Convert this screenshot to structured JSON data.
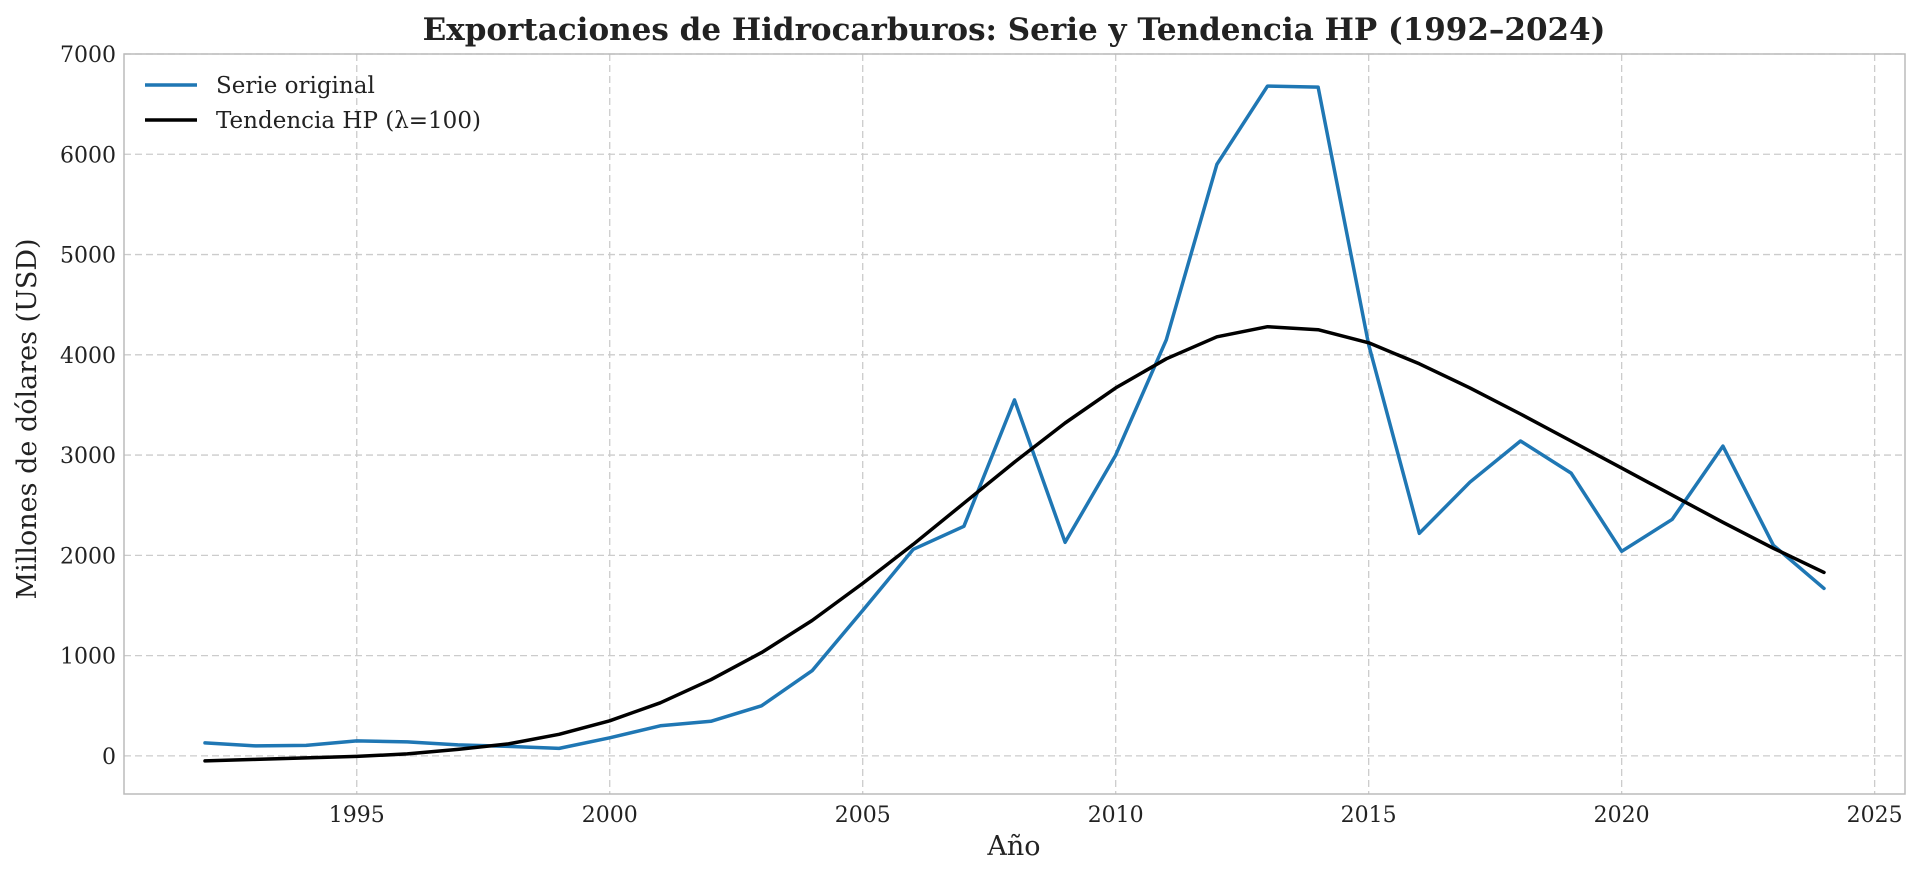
{
  "chart_data": {
    "type": "line",
    "title": "Exportaciones de Hidrocarburos: Serie y Tendencia HP (1992–2024)",
    "xlabel": "Año",
    "ylabel": "Millones de dólares (USD)",
    "xlim": [
      1990.4,
      2025.6
    ],
    "ylim": [
      -380,
      7000
    ],
    "xticks": [
      1995,
      2000,
      2005,
      2010,
      2015,
      2020,
      2025
    ],
    "yticks": [
      0,
      1000,
      2000,
      3000,
      4000,
      5000,
      6000,
      7000
    ],
    "grid": true,
    "legend_position": "top-left",
    "x": [
      1992,
      1993,
      1994,
      1995,
      1996,
      1997,
      1998,
      1999,
      2000,
      2001,
      2002,
      2003,
      2004,
      2005,
      2006,
      2007,
      2008,
      2009,
      2010,
      2011,
      2012,
      2013,
      2014,
      2015,
      2016,
      2017,
      2018,
      2019,
      2020,
      2021,
      2022,
      2023,
      2024
    ],
    "series": [
      {
        "name": "Serie original",
        "color": "#1f77b4",
        "values": [
          130,
          100,
          105,
          150,
          140,
          110,
          95,
          75,
          180,
          300,
          345,
          500,
          850,
          1450,
          2060,
          2290,
          3550,
          2130,
          3000,
          4150,
          5900,
          6680,
          6670,
          4100,
          2220,
          2730,
          3140,
          2820,
          2040,
          2360,
          3090,
          2100,
          1670
        ]
      },
      {
        "name": "Tendencia HP (λ=100)",
        "color": "#000000",
        "values": [
          -50,
          -35,
          -20,
          -5,
          20,
          65,
          120,
          215,
          350,
          530,
          760,
          1030,
          1350,
          1720,
          2110,
          2520,
          2930,
          3320,
          3670,
          3960,
          4180,
          4280,
          4250,
          4120,
          3910,
          3670,
          3410,
          3140,
          2870,
          2600,
          2330,
          2070,
          1830
        ]
      }
    ]
  }
}
